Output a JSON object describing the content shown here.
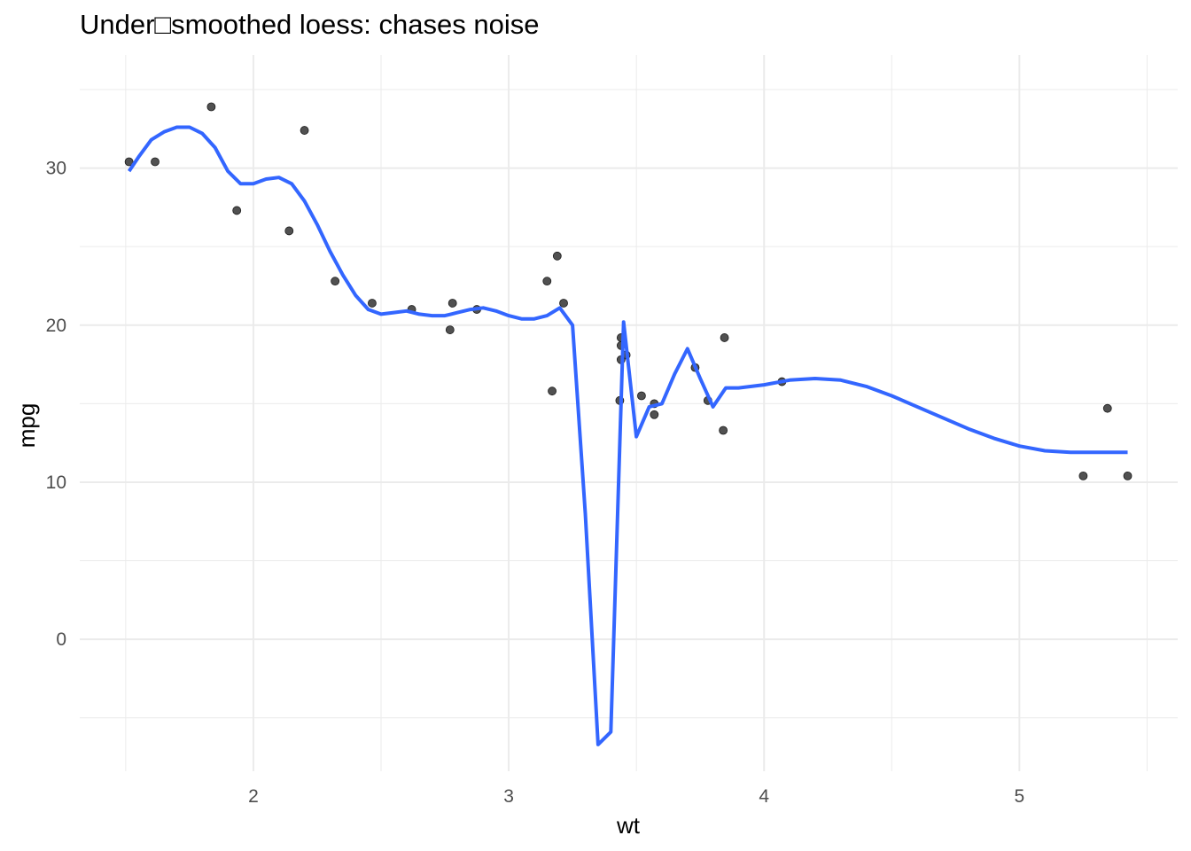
{
  "chart_data": {
    "type": "scatter",
    "title": "Under□smoothed loess: chases noise",
    "xlabel": "wt",
    "ylabel": "mpg",
    "xlim": [
      1.32,
      5.62
    ],
    "ylim": [
      -8.4,
      37.2
    ],
    "grid": true,
    "x_ticks": [
      2,
      3,
      4,
      5
    ],
    "y_ticks": [
      0,
      10,
      20,
      30
    ],
    "colors": {
      "points": "#333333",
      "line": "#3366ff",
      "grid": "#ebebeb"
    },
    "points": [
      {
        "x": 1.513,
        "y": 30.4
      },
      {
        "x": 1.615,
        "y": 30.4
      },
      {
        "x": 1.835,
        "y": 33.9
      },
      {
        "x": 1.935,
        "y": 27.3
      },
      {
        "x": 2.14,
        "y": 26.0
      },
      {
        "x": 2.2,
        "y": 32.4
      },
      {
        "x": 2.32,
        "y": 22.8
      },
      {
        "x": 2.465,
        "y": 21.4
      },
      {
        "x": 2.62,
        "y": 21.0
      },
      {
        "x": 2.77,
        "y": 19.7
      },
      {
        "x": 2.78,
        "y": 21.4
      },
      {
        "x": 2.875,
        "y": 21.0
      },
      {
        "x": 3.15,
        "y": 22.8
      },
      {
        "x": 3.17,
        "y": 15.8
      },
      {
        "x": 3.19,
        "y": 24.4
      },
      {
        "x": 3.215,
        "y": 21.4
      },
      {
        "x": 3.435,
        "y": 15.2
      },
      {
        "x": 3.44,
        "y": 18.7
      },
      {
        "x": 3.44,
        "y": 19.2
      },
      {
        "x": 3.44,
        "y": 17.8
      },
      {
        "x": 3.46,
        "y": 18.1
      },
      {
        "x": 3.52,
        "y": 15.5
      },
      {
        "x": 3.57,
        "y": 15.0
      },
      {
        "x": 3.57,
        "y": 14.3
      },
      {
        "x": 3.73,
        "y": 17.3
      },
      {
        "x": 3.78,
        "y": 15.2
      },
      {
        "x": 3.84,
        "y": 13.3
      },
      {
        "x": 3.845,
        "y": 19.2
      },
      {
        "x": 4.07,
        "y": 16.4
      },
      {
        "x": 5.25,
        "y": 10.4
      },
      {
        "x": 5.345,
        "y": 14.7
      },
      {
        "x": 5.424,
        "y": 10.4
      }
    ],
    "series": [
      {
        "type": "line",
        "x": [
          1.513,
          1.55,
          1.6,
          1.65,
          1.7,
          1.75,
          1.8,
          1.85,
          1.9,
          1.95,
          2.0,
          2.05,
          2.1,
          2.15,
          2.2,
          2.25,
          2.3,
          2.35,
          2.4,
          2.45,
          2.5,
          2.55,
          2.6,
          2.65,
          2.7,
          2.75,
          2.8,
          2.85,
          2.9,
          2.95,
          3.0,
          3.05,
          3.1,
          3.15,
          3.2,
          3.25,
          3.3,
          3.35,
          3.4,
          3.45,
          3.5,
          3.55,
          3.6,
          3.65,
          3.7,
          3.75,
          3.8,
          3.85,
          3.9,
          3.95,
          4.0,
          4.1,
          4.2,
          4.3,
          4.4,
          4.5,
          4.6,
          4.7,
          4.8,
          4.9,
          5.0,
          5.1,
          5.2,
          5.3,
          5.4,
          5.424
        ],
        "y": [
          29.8,
          30.7,
          31.8,
          32.3,
          32.6,
          32.6,
          32.2,
          31.3,
          29.8,
          29.0,
          29.0,
          29.3,
          29.4,
          29.0,
          27.9,
          26.4,
          24.7,
          23.2,
          21.9,
          21.0,
          20.7,
          20.8,
          20.9,
          20.7,
          20.6,
          20.6,
          20.8,
          21.0,
          21.1,
          20.9,
          20.6,
          20.4,
          20.4,
          20.6,
          21.1,
          20.0,
          8.0,
          -6.7,
          -5.9,
          20.2,
          12.9,
          14.8,
          15.0,
          16.9,
          18.5,
          16.6,
          14.8,
          16.0,
          16.0,
          16.1,
          16.2,
          16.5,
          16.6,
          16.5,
          16.1,
          15.5,
          14.8,
          14.1,
          13.4,
          12.8,
          12.3,
          12.0,
          11.9,
          11.9,
          11.9,
          11.9
        ]
      }
    ]
  }
}
